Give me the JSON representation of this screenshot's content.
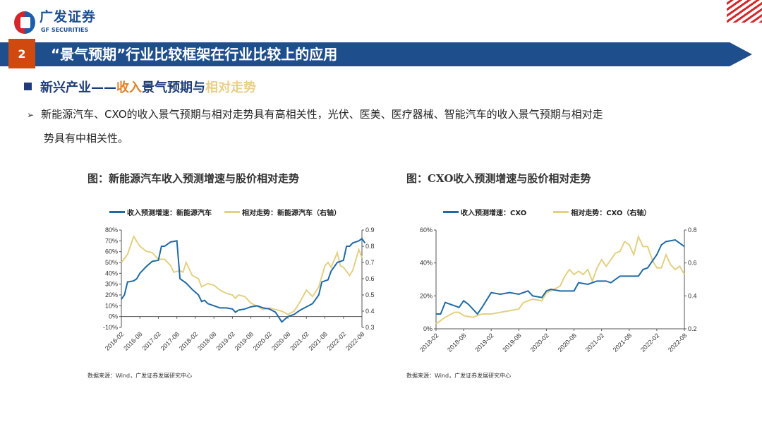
{
  "header": {
    "logo_cn": "广发证券",
    "logo_en": "GF SECURITIES",
    "section_number": "2",
    "title": "“景气预期”行业比较框架在行业比较上的应用"
  },
  "heading": {
    "part1": "新兴产业——",
    "part2": "收入",
    "part3": "景气预期与",
    "part4": "相对走势"
  },
  "paragraph": {
    "line1": "新能源汽车、CXO的收入景气预期与相对走势具有高相关性，光伏、医美、医疗器械、智能汽车的收入景气预期与相对走",
    "line2": "势具有中相关性。"
  },
  "colors": {
    "blue": "#1f6aa5",
    "yellow": "#e3d083",
    "bar": "#1f4e8c",
    "orange": "#d04a10"
  },
  "chart_data": [
    {
      "type": "line",
      "title": "图：新能源汽车收入预测增速与股价相对走势",
      "source": "数据来源：Wind，广发证券发展研究中心",
      "x_start": "2016-02",
      "x_ticks": [
        "2016-02",
        "2016-08",
        "2017-02",
        "2017-08",
        "2018-02",
        "2018-08",
        "2019-02",
        "2019-08",
        "2020-02",
        "2020-08",
        "2021-02",
        "2021-08",
        "2022-02",
        "2022-08"
      ],
      "ylim_left": [
        -10,
        80
      ],
      "yticks_left": [
        "-10%",
        "0%",
        "10%",
        "20%",
        "30%",
        "40%",
        "50%",
        "60%",
        "70%",
        "80%"
      ],
      "ylim_right": [
        0.3,
        0.9
      ],
      "yticks_right": [
        "0.3",
        "0.4",
        "0.5",
        "0.6",
        "0.7",
        "0.8",
        "0.9"
      ],
      "series": [
        {
          "name": "收入预测增速：新能源汽车",
          "axis": "left",
          "color": "#1f6aa5",
          "points": [
            [
              0,
              16
            ],
            [
              1,
              20
            ],
            [
              2,
              32
            ],
            [
              4,
              33
            ],
            [
              5,
              35
            ],
            [
              6,
              40
            ],
            [
              8,
              46
            ],
            [
              10,
              51
            ],
            [
              12,
              52
            ],
            [
              13,
              65
            ],
            [
              14,
              65
            ],
            [
              16,
              69
            ],
            [
              18,
              70
            ],
            [
              19,
              35
            ],
            [
              21,
              31
            ],
            [
              23,
              25
            ],
            [
              25,
              20
            ],
            [
              26,
              14
            ],
            [
              27,
              15
            ],
            [
              28,
              12
            ],
            [
              30,
              10
            ],
            [
              32,
              8
            ],
            [
              34,
              8
            ],
            [
              36,
              7
            ],
            [
              37,
              4
            ],
            [
              38,
              6
            ],
            [
              40,
              7
            ],
            [
              42,
              9
            ],
            [
              44,
              10
            ],
            [
              46,
              8
            ],
            [
              48,
              7
            ],
            [
              50,
              4
            ],
            [
              52,
              -5
            ],
            [
              54,
              0
            ],
            [
              56,
              2
            ],
            [
              58,
              6
            ],
            [
              60,
              9
            ],
            [
              62,
              12
            ],
            [
              64,
              20
            ],
            [
              65,
              32
            ],
            [
              67,
              34
            ],
            [
              68,
              42
            ],
            [
              70,
              50
            ],
            [
              72,
              52
            ],
            [
              73,
              65
            ],
            [
              74,
              65
            ],
            [
              75,
              68
            ],
            [
              77,
              70
            ],
            [
              78,
              72
            ],
            [
              79,
              68
            ]
          ]
        },
        {
          "name": "相对走势：新能源汽车（右轴）",
          "axis": "right",
          "color": "#e3d083",
          "points": [
            [
              0,
              0.7
            ],
            [
              2,
              0.75
            ],
            [
              4,
              0.86
            ],
            [
              6,
              0.8
            ],
            [
              8,
              0.77
            ],
            [
              10,
              0.76
            ],
            [
              12,
              0.72
            ],
            [
              14,
              0.72
            ],
            [
              16,
              0.68
            ],
            [
              17,
              0.64
            ],
            [
              19,
              0.65
            ],
            [
              20,
              0.64
            ],
            [
              21,
              0.7
            ],
            [
              23,
              0.62
            ],
            [
              25,
              0.6
            ],
            [
              26,
              0.55
            ],
            [
              28,
              0.57
            ],
            [
              30,
              0.56
            ],
            [
              32,
              0.53
            ],
            [
              34,
              0.51
            ],
            [
              36,
              0.5
            ],
            [
              37,
              0.48
            ],
            [
              38,
              0.5
            ],
            [
              40,
              0.49
            ],
            [
              42,
              0.45
            ],
            [
              44,
              0.43
            ],
            [
              46,
              0.41
            ],
            [
              48,
              0.42
            ],
            [
              50,
              0.41
            ],
            [
              52,
              0.4
            ],
            [
              54,
              0.38
            ],
            [
              56,
              0.4
            ],
            [
              58,
              0.46
            ],
            [
              60,
              0.53
            ],
            [
              62,
              0.49
            ],
            [
              64,
              0.55
            ],
            [
              66,
              0.68
            ],
            [
              67,
              0.7
            ],
            [
              68,
              0.67
            ],
            [
              70,
              0.76
            ],
            [
              71,
              0.68
            ],
            [
              72,
              0.67
            ],
            [
              74,
              0.62
            ],
            [
              75,
              0.65
            ],
            [
              77,
              0.78
            ],
            [
              78,
              0.73
            ]
          ]
        }
      ]
    },
    {
      "type": "line",
      "title": "图：CXO收入预测增速与股价相对走势",
      "source": "数据来源：Wind，广发证券发展研究中心",
      "x_start": "2018-02",
      "x_ticks": [
        "2018-02",
        "2018-08",
        "2019-02",
        "2019-08",
        "2020-02",
        "2020-08",
        "2021-02",
        "2021-08",
        "2022-02",
        "2022-08"
      ],
      "ylim_left": [
        0,
        60
      ],
      "yticks_left": [
        "0%",
        "20%",
        "40%",
        "60%"
      ],
      "ylim_right": [
        0.2,
        0.8
      ],
      "yticks_right": [
        "0.2",
        "0.4",
        "0.6",
        "0.8"
      ],
      "series": [
        {
          "name": "收入预测增速：CXO",
          "axis": "left",
          "color": "#1f6aa5",
          "points": [
            [
              0,
              9
            ],
            [
              1,
              9
            ],
            [
              2,
              16
            ],
            [
              4,
              14
            ],
            [
              5,
              13
            ],
            [
              6,
              17
            ],
            [
              7,
              15
            ],
            [
              9,
              9
            ],
            [
              10,
              13
            ],
            [
              12,
              22
            ],
            [
              14,
              21
            ],
            [
              16,
              22
            ],
            [
              18,
              21
            ],
            [
              20,
              23
            ],
            [
              21,
              20
            ],
            [
              23,
              19
            ],
            [
              24,
              23
            ],
            [
              25,
              24
            ],
            [
              27,
              23
            ],
            [
              30,
              23
            ],
            [
              31,
              28
            ],
            [
              33,
              27
            ],
            [
              35,
              29
            ],
            [
              37,
              29
            ],
            [
              38,
              28
            ],
            [
              40,
              32
            ],
            [
              42,
              32
            ],
            [
              44,
              32
            ],
            [
              45,
              36
            ],
            [
              46,
              37
            ],
            [
              48,
              45
            ],
            [
              49,
              51
            ],
            [
              50,
              53
            ],
            [
              52,
              54
            ],
            [
              53,
              52
            ],
            [
              54,
              50
            ]
          ]
        },
        {
          "name": "相对走势：CXO（右轴）",
          "axis": "right",
          "color": "#e3d083",
          "points": [
            [
              0,
              0.23
            ],
            [
              2,
              0.27
            ],
            [
              4,
              0.3
            ],
            [
              5,
              0.3
            ],
            [
              6,
              0.28
            ],
            [
              8,
              0.27
            ],
            [
              10,
              0.29
            ],
            [
              12,
              0.29
            ],
            [
              14,
              0.3
            ],
            [
              16,
              0.31
            ],
            [
              18,
              0.32
            ],
            [
              19,
              0.36
            ],
            [
              21,
              0.38
            ],
            [
              23,
              0.37
            ],
            [
              24,
              0.42
            ],
            [
              25,
              0.43
            ],
            [
              27,
              0.46
            ],
            [
              28,
              0.52
            ],
            [
              29,
              0.56
            ],
            [
              30,
              0.53
            ],
            [
              31,
              0.55
            ],
            [
              32,
              0.53
            ],
            [
              33,
              0.56
            ],
            [
              34,
              0.49
            ],
            [
              35,
              0.57
            ],
            [
              36,
              0.62
            ],
            [
              37,
              0.58
            ],
            [
              39,
              0.66
            ],
            [
              40,
              0.67
            ],
            [
              41,
              0.73
            ],
            [
              42,
              0.71
            ],
            [
              43,
              0.65
            ],
            [
              44,
              0.76
            ],
            [
              45,
              0.7
            ],
            [
              46,
              0.7
            ],
            [
              47,
              0.62
            ],
            [
              48,
              0.57
            ],
            [
              49,
              0.57
            ],
            [
              50,
              0.65
            ],
            [
              51,
              0.59
            ],
            [
              52,
              0.56
            ],
            [
              53,
              0.58
            ],
            [
              54,
              0.53
            ]
          ]
        }
      ]
    }
  ]
}
